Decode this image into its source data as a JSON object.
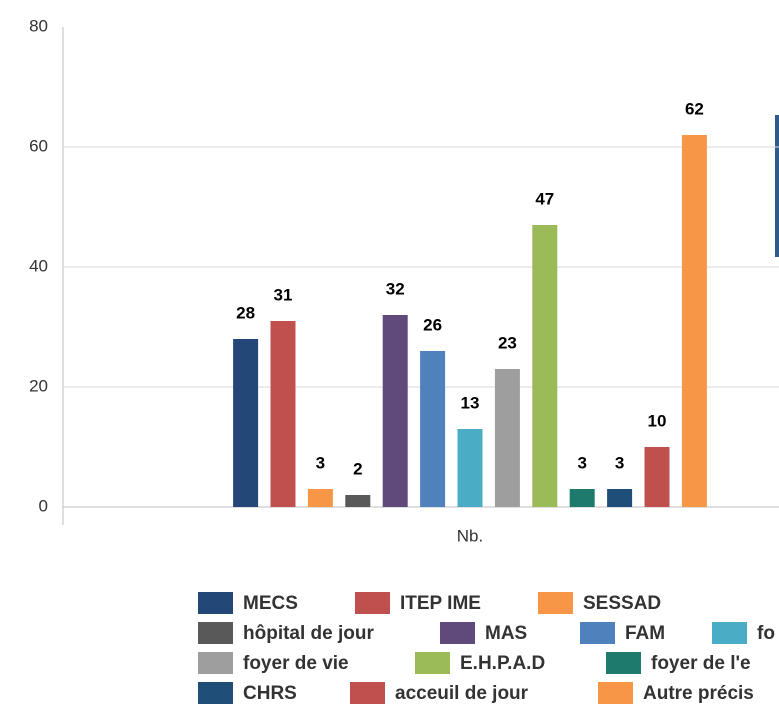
{
  "chart_data": {
    "type": "bar",
    "categories": [
      "Nb."
    ],
    "series": [
      {
        "name": "MECS",
        "color": "#234878",
        "values": [
          28
        ]
      },
      {
        "name": "ITEP IME",
        "color": "#c0504d",
        "values": [
          31
        ]
      },
      {
        "name": "SESSAD",
        "color": "#f79646",
        "values": [
          3
        ]
      },
      {
        "name": "hôpital de jour",
        "color": "#595959",
        "values": [
          2
        ]
      },
      {
        "name": "MAS",
        "color": "#604a7b",
        "values": [
          32
        ]
      },
      {
        "name": "FAM",
        "color": "#4f81bd",
        "values": [
          26
        ]
      },
      {
        "name": "fo",
        "color": "#4bacc6",
        "values": [
          13
        ]
      },
      {
        "name": "foyer de vie",
        "color": "#9e9e9e",
        "values": [
          23
        ]
      },
      {
        "name": "E.H.P.A.D",
        "color": "#9bbb59",
        "values": [
          47
        ]
      },
      {
        "name": "foyer de l'e",
        "color": "#1f7a6e",
        "values": [
          3
        ]
      },
      {
        "name": "CHRS",
        "color": "#1f4e79",
        "values": [
          3
        ]
      },
      {
        "name": "acceuil de jour",
        "color": "#c0504d",
        "values": [
          10
        ]
      },
      {
        "name": "Autre précis",
        "color": "#f79646",
        "values": [
          62
        ]
      }
    ],
    "ylim": [
      0,
      80
    ],
    "yticks": [
      0,
      20,
      40,
      60,
      80
    ],
    "grid": true
  }
}
